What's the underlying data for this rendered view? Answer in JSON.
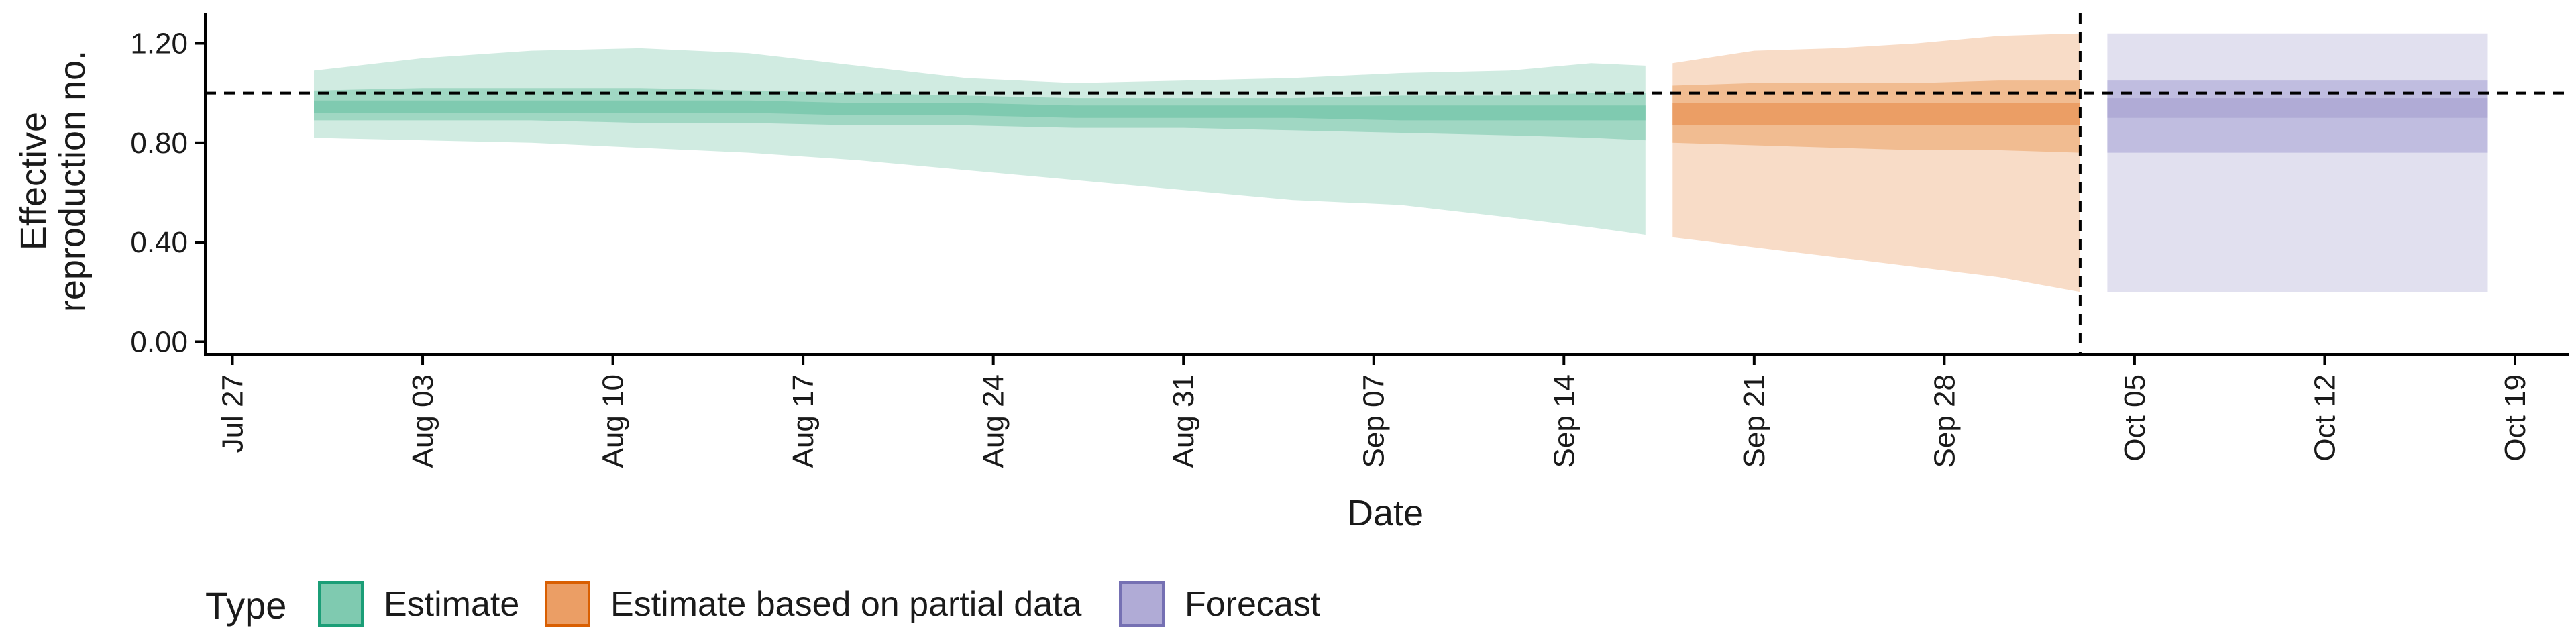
{
  "chart_data": {
    "type": "area",
    "title": "",
    "xlabel": "Date",
    "ylabel_lines": [
      "Effective",
      "reproduction no."
    ],
    "ylim": [
      -0.05,
      1.32
    ],
    "y_ticks": [
      0.0,
      0.4,
      0.8,
      1.2
    ],
    "y_tick_labels": [
      "0.00",
      "0.40",
      "0.80",
      "1.20"
    ],
    "x_domain": [
      "2020-07-26",
      "2020-10-21"
    ],
    "x_ticks": [
      "2020-07-27",
      "2020-08-03",
      "2020-08-10",
      "2020-08-17",
      "2020-08-24",
      "2020-08-31",
      "2020-09-07",
      "2020-09-14",
      "2020-09-21",
      "2020-09-28",
      "2020-10-05",
      "2020-10-12",
      "2020-10-19"
    ],
    "x_tick_labels": [
      "Jul 27",
      "Aug 03",
      "Aug 10",
      "Aug 17",
      "Aug 24",
      "Aug 31",
      "Sep 07",
      "Sep 14",
      "Sep 21",
      "Sep 28",
      "Oct 05",
      "Oct 12",
      "Oct 19"
    ],
    "reference_line_y": 1.0,
    "forecast_date": "2020-10-03",
    "legend": {
      "title": "Type",
      "position": "bottom",
      "items": [
        {
          "label": "Estimate",
          "fill": "#7fcab0",
          "stroke": "#1b9e77"
        },
        {
          "label": "Estimate based on partial data",
          "fill": "#eb9e65",
          "stroke": "#d95f02"
        },
        {
          "label": "Forecast",
          "fill": "#b0abd6",
          "stroke": "#7570b3"
        }
      ]
    },
    "series": [
      {
        "name": "Estimate",
        "colors": {
          "outer": "#d0ebe1",
          "mid": "#a0d7c3",
          "inner": "#7fcab0"
        },
        "x": [
          "2020-07-30",
          "2020-08-03",
          "2020-08-07",
          "2020-08-11",
          "2020-08-15",
          "2020-08-19",
          "2020-08-23",
          "2020-08-27",
          "2020-08-31",
          "2020-09-04",
          "2020-09-08",
          "2020-09-12",
          "2020-09-15",
          "2020-09-17"
        ],
        "lower90": [
          0.82,
          0.81,
          0.8,
          0.78,
          0.76,
          0.73,
          0.69,
          0.65,
          0.61,
          0.57,
          0.55,
          0.5,
          0.46,
          0.43
        ],
        "upper90": [
          1.09,
          1.14,
          1.17,
          1.18,
          1.16,
          1.11,
          1.06,
          1.04,
          1.05,
          1.06,
          1.08,
          1.09,
          1.12,
          1.11
        ],
        "lower50": [
          0.89,
          0.89,
          0.89,
          0.88,
          0.88,
          0.87,
          0.87,
          0.86,
          0.86,
          0.85,
          0.84,
          0.83,
          0.82,
          0.81
        ],
        "upper50": [
          1.01,
          1.02,
          1.02,
          1.02,
          1.01,
          1.0,
          0.99,
          0.98,
          0.98,
          0.98,
          0.99,
          0.99,
          1.0,
          1.0
        ],
        "lower20": [
          0.92,
          0.92,
          0.92,
          0.92,
          0.92,
          0.91,
          0.91,
          0.9,
          0.9,
          0.9,
          0.89,
          0.89,
          0.89,
          0.89
        ],
        "upper20": [
          0.97,
          0.97,
          0.97,
          0.97,
          0.97,
          0.96,
          0.96,
          0.95,
          0.95,
          0.95,
          0.95,
          0.95,
          0.95,
          0.95
        ]
      },
      {
        "name": "Estimate based on partial data",
        "colors": {
          "outer": "#f8dcc7",
          "mid": "#f1bc91",
          "inner": "#eb9e65"
        },
        "x": [
          "2020-09-18",
          "2020-09-21",
          "2020-09-24",
          "2020-09-27",
          "2020-09-30",
          "2020-10-03"
        ],
        "lower90": [
          0.42,
          0.38,
          0.34,
          0.3,
          0.26,
          0.2
        ],
        "upper90": [
          1.12,
          1.17,
          1.18,
          1.2,
          1.23,
          1.24
        ],
        "lower50": [
          0.8,
          0.79,
          0.78,
          0.77,
          0.77,
          0.76
        ],
        "upper50": [
          1.03,
          1.04,
          1.04,
          1.04,
          1.05,
          1.05
        ],
        "lower20": [
          0.87,
          0.87,
          0.87,
          0.87,
          0.87,
          0.87
        ],
        "upper20": [
          0.96,
          0.96,
          0.96,
          0.96,
          0.96,
          0.96
        ]
      },
      {
        "name": "Forecast",
        "colors": {
          "outer": "#e1e0ef",
          "mid": "#c0bde0",
          "inner": "#b0abd6"
        },
        "x": [
          "2020-10-04",
          "2020-10-18"
        ],
        "lower90": [
          0.2,
          0.2
        ],
        "upper90": [
          1.24,
          1.24
        ],
        "lower50": [
          0.76,
          0.76
        ],
        "upper50": [
          1.05,
          1.05
        ],
        "lower20": [
          0.9,
          0.9
        ],
        "upper20": [
          0.98,
          0.98
        ]
      }
    ]
  }
}
